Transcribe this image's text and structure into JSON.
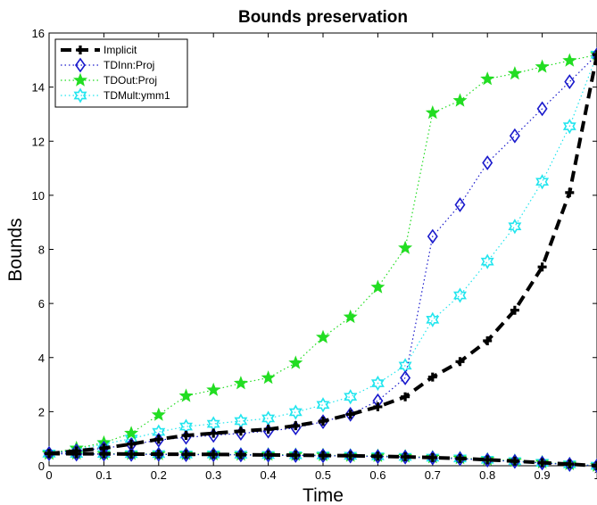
{
  "chart_data": {
    "type": "line",
    "title": "Bounds preservation",
    "xlabel": "Time",
    "ylabel": "Bounds",
    "xlim": [
      0,
      1
    ],
    "ylim": [
      0,
      16
    ],
    "xticks": [
      0,
      0.1,
      0.2,
      0.3,
      0.4,
      0.5,
      0.6,
      0.7,
      0.8,
      0.9,
      1
    ],
    "xtick_labels": [
      "0",
      "0.1",
      "0.2",
      "0.3",
      "0.4",
      "0.5",
      "0.6",
      "0.7",
      "0.8",
      "0.9",
      "1"
    ],
    "yticks": [
      0,
      2,
      4,
      6,
      8,
      10,
      12,
      14,
      16
    ],
    "ytick_labels": [
      "0",
      "2",
      "4",
      "6",
      "8",
      "10",
      "12",
      "14",
      "16"
    ],
    "grid": false,
    "legend_position": "top-left",
    "x": [
      0,
      0.05,
      0.1,
      0.15,
      0.2,
      0.25,
      0.3,
      0.35,
      0.4,
      0.45,
      0.5,
      0.55,
      0.6,
      0.65,
      0.7,
      0.75,
      0.8,
      0.85,
      0.9,
      0.95,
      1
    ],
    "series": [
      {
        "name": "Implicit",
        "color": "#000000",
        "line": "dashed",
        "marker": "plus",
        "upper": [
          0.45,
          0.55,
          0.65,
          0.8,
          0.98,
          1.12,
          1.2,
          1.28,
          1.35,
          1.48,
          1.65,
          1.9,
          2.18,
          2.55,
          3.28,
          3.85,
          4.62,
          5.75,
          7.35,
          10.1,
          15.2
        ],
        "lower": [
          0.45,
          0.44,
          0.44,
          0.43,
          0.43,
          0.42,
          0.42,
          0.41,
          0.4,
          0.39,
          0.38,
          0.37,
          0.35,
          0.33,
          0.3,
          0.27,
          0.22,
          0.17,
          0.11,
          0.06,
          0.0
        ]
      },
      {
        "name": "TDInn:Proj",
        "color": "#1a1acc",
        "line": "dotted",
        "marker": "diamond",
        "upper": [
          0.45,
          0.55,
          0.65,
          0.78,
          0.95,
          1.05,
          1.12,
          1.2,
          1.28,
          1.4,
          1.63,
          1.9,
          2.4,
          3.25,
          8.48,
          9.65,
          11.2,
          12.2,
          13.2,
          14.2,
          15.2
        ],
        "lower": [
          0.45,
          0.43,
          0.43,
          0.42,
          0.42,
          0.41,
          0.41,
          0.4,
          0.39,
          0.38,
          0.37,
          0.36,
          0.34,
          0.32,
          0.29,
          0.26,
          0.21,
          0.16,
          0.1,
          0.05,
          0.0
        ]
      },
      {
        "name": "TDOut:Proj",
        "color": "#22dd22",
        "line": "dotted",
        "marker": "star5",
        "upper": [
          0.45,
          0.65,
          0.85,
          1.2,
          1.88,
          2.58,
          2.8,
          3.05,
          3.25,
          3.8,
          4.75,
          5.5,
          6.6,
          8.05,
          13.05,
          13.5,
          14.3,
          14.5,
          14.75,
          14.98,
          15.2
        ],
        "lower": [
          0.45,
          0.45,
          0.44,
          0.44,
          0.43,
          0.43,
          0.42,
          0.41,
          0.41,
          0.4,
          0.39,
          0.37,
          0.36,
          0.34,
          0.31,
          0.28,
          0.23,
          0.18,
          0.12,
          0.06,
          0.0
        ]
      },
      {
        "name": "TDMult:ymm1",
        "color": "#22e5ee",
        "line": "dotted",
        "marker": "star6",
        "upper": [
          0.45,
          0.6,
          0.8,
          1.0,
          1.25,
          1.45,
          1.55,
          1.65,
          1.75,
          1.98,
          2.25,
          2.55,
          3.05,
          3.7,
          5.4,
          6.3,
          7.55,
          8.85,
          10.5,
          12.55,
          15.2
        ],
        "lower": [
          0.45,
          0.44,
          0.44,
          0.43,
          0.43,
          0.42,
          0.42,
          0.41,
          0.4,
          0.39,
          0.38,
          0.37,
          0.35,
          0.33,
          0.3,
          0.27,
          0.22,
          0.17,
          0.11,
          0.05,
          0.0
        ]
      }
    ]
  }
}
